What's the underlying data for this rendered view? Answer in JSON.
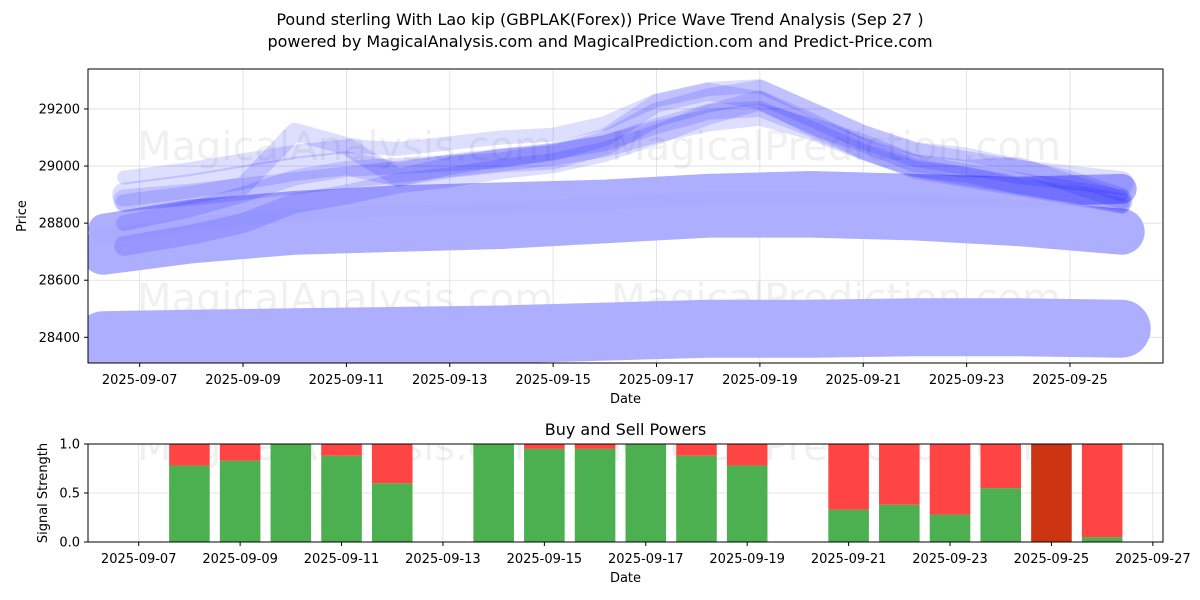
{
  "title_line1": "Pound sterling With Lao kip (GBPLAK(Forex)) Price Wave Trend Analysis (Sep 27 )",
  "title_line2": "powered by MagicalAnalysis.com and MagicalPrediction.com and Predict-Price.com",
  "watermarks": [
    "MagicalAnalysis.com",
    "MagicalPrediction.com"
  ],
  "colors": {
    "wave": "#0000ff",
    "band": "#aaaaff",
    "buy": "#4caf50",
    "sell": "#ff4444",
    "sell_dark": "#cc3311"
  },
  "chart_data": [
    {
      "type": "area",
      "title": "",
      "xlabel": "Date",
      "ylabel": "Price",
      "x_ticks": [
        "2025-09-07",
        "2025-09-09",
        "2025-09-11",
        "2025-09-13",
        "2025-09-15",
        "2025-09-17",
        "2025-09-19",
        "2025-09-21",
        "2025-09-23",
        "2025-09-25"
      ],
      "y_ticks": [
        28400,
        28600,
        28800,
        29000,
        29200
      ],
      "ylim": [
        28310,
        29340
      ],
      "xlim": [
        "2025-09-06.0",
        "2025-09-26.8"
      ],
      "grid": true,
      "bands": [
        {
          "name": "low band",
          "x": [
            6.3,
            8,
            10,
            12,
            14,
            16,
            18,
            20,
            22,
            24,
            26
          ],
          "y": [
            28390,
            28395,
            28400,
            28405,
            28410,
            28420,
            28430,
            28430,
            28435,
            28435,
            28430
          ]
        },
        {
          "name": "mid band",
          "x": [
            6.3,
            8,
            10,
            12,
            14,
            16,
            18,
            20,
            22,
            24,
            26
          ],
          "y": [
            28700,
            28740,
            28770,
            28780,
            28790,
            28810,
            28830,
            28830,
            28820,
            28800,
            28770
          ]
        },
        {
          "name": "upper band",
          "x": [
            6.3,
            8,
            10,
            12,
            14,
            16,
            18,
            20,
            22,
            24,
            26
          ],
          "y": [
            28780,
            28830,
            28860,
            28880,
            28890,
            28900,
            28920,
            28930,
            28920,
            28910,
            28920
          ]
        }
      ],
      "waves": [
        {
          "x": [
            6.7,
            8,
            9,
            10,
            11,
            12,
            13,
            14,
            15,
            16,
            17,
            18,
            19,
            20,
            21,
            22,
            23,
            24,
            25,
            26
          ],
          "y": [
            28900,
            28930,
            28960,
            28990,
            29010,
            28970,
            29000,
            29020,
            29030,
            29080,
            29180,
            29230,
            29260,
            29180,
            29100,
            29040,
            29010,
            28980,
            28960,
            28940
          ]
        },
        {
          "x": [
            6.7,
            8,
            9,
            10,
            11,
            12,
            13,
            14,
            15,
            16,
            17,
            18,
            19,
            20,
            21,
            22,
            23,
            24,
            25,
            26
          ],
          "y": [
            28870,
            28900,
            28930,
            29120,
            29070,
            28960,
            29000,
            29030,
            29050,
            29100,
            29220,
            29260,
            29230,
            29140,
            29080,
            29010,
            28990,
            29000,
            28940,
            28880
          ]
        },
        {
          "x": [
            6.7,
            8,
            9,
            10,
            11,
            12,
            13,
            14,
            15,
            16,
            17,
            18,
            19,
            20,
            21,
            22,
            23,
            24,
            25,
            26
          ],
          "y": [
            28720,
            28760,
            28800,
            28870,
            28900,
            28940,
            28960,
            28990,
            29010,
            29050,
            29110,
            29180,
            29230,
            29150,
            29060,
            28990,
            28960,
            28930,
            28900,
            28870
          ]
        },
        {
          "x": [
            6.7,
            8,
            9,
            10,
            11,
            12,
            13,
            14,
            15,
            16,
            17,
            18,
            19,
            20,
            21,
            22,
            23,
            24,
            25,
            26
          ],
          "y": [
            28960,
            28990,
            29020,
            29050,
            29070,
            29060,
            29080,
            29100,
            29110,
            29150,
            29230,
            29270,
            29280,
            29200,
            29120,
            29060,
            29040,
            29000,
            28960,
            28900
          ]
        },
        {
          "x": [
            6.7,
            8,
            9,
            10,
            11,
            12,
            13,
            14,
            15,
            16,
            17,
            18,
            19,
            20,
            21,
            22,
            23,
            24,
            25,
            26
          ],
          "y": [
            28880,
            28900,
            28920,
            28940,
            28960,
            28980,
            29000,
            29020,
            29040,
            29070,
            29120,
            29160,
            29180,
            29130,
            29060,
            29000,
            28970,
            28940,
            28910,
            28880
          ]
        },
        {
          "x": [
            6.7,
            8,
            9,
            10,
            11,
            12,
            13,
            14,
            15,
            16,
            17,
            18,
            19,
            20,
            21,
            22,
            23,
            24,
            25,
            26
          ],
          "y": [
            28800,
            28850,
            28900,
            28960,
            28990,
            29000,
            29010,
            29020,
            29050,
            29080,
            29140,
            29190,
            29200,
            29130,
            29050,
            28990,
            28970,
            28930,
            28900,
            28860
          ]
        }
      ]
    },
    {
      "type": "bar",
      "title": "Buy and Sell Powers",
      "xlabel": "Date",
      "ylabel": "Signal Strength",
      "x_ticks": [
        "2025-09-07",
        "2025-09-09",
        "2025-09-11",
        "2025-09-13",
        "2025-09-15",
        "2025-09-17",
        "2025-09-19",
        "2025-09-21",
        "2025-09-23",
        "2025-09-25",
        "2025-09-27"
      ],
      "y_ticks": [
        "0.0",
        "0.5",
        "1.0"
      ],
      "ylim": [
        0,
        1
      ],
      "xlim": [
        "2025-09-06.0",
        "2025-09-27.2"
      ],
      "grid": true,
      "series": [
        {
          "name": "buy",
          "days": [
            8,
            9,
            10,
            11,
            12,
            14,
            15,
            16,
            17,
            18,
            19,
            21,
            22,
            23,
            24,
            25,
            26
          ],
          "values": [
            0.78,
            0.83,
            1.0,
            0.88,
            0.6,
            1.0,
            0.95,
            0.95,
            1.0,
            0.88,
            0.78,
            0.33,
            0.38,
            0.28,
            0.55,
            0.0,
            0.05
          ]
        },
        {
          "name": "sell",
          "days": [
            8,
            9,
            10,
            11,
            12,
            14,
            15,
            16,
            17,
            18,
            19,
            21,
            22,
            23,
            24,
            25,
            26
          ],
          "values": [
            0.22,
            0.17,
            0.0,
            0.12,
            0.4,
            0.0,
            0.05,
            0.05,
            0.0,
            0.12,
            0.22,
            0.67,
            0.62,
            0.72,
            0.45,
            1.0,
            0.95
          ]
        }
      ]
    }
  ]
}
